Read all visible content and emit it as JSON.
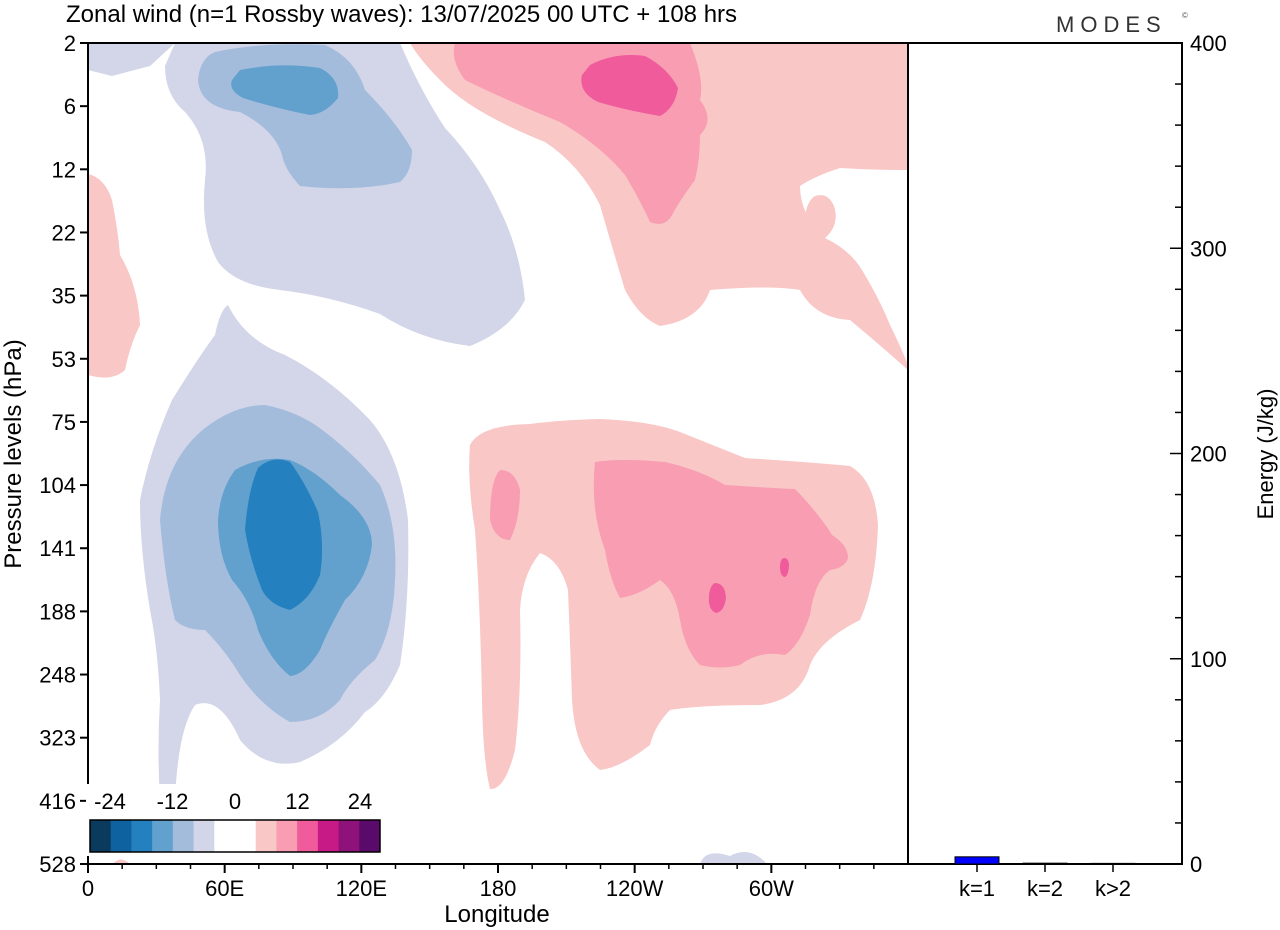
{
  "header": {
    "title": "Zonal wind (n=1 Rossby waves):  13/07/2025  00 UTC  + 108 hrs",
    "logo_text": "MODES",
    "logo_mark": "©"
  },
  "chart_data": [
    {
      "type": "heatmap",
      "title": "Zonal wind (n=1 Rossby waves):  13/07/2025  00 UTC  + 108 hrs",
      "xlabel": "Longitude",
      "ylabel": "Pressure levels (hPa)",
      "x_ticks": [
        {
          "lon": 0,
          "label": "0"
        },
        {
          "lon": 60,
          "label": "60E"
        },
        {
          "lon": 120,
          "label": "120E"
        },
        {
          "lon": 180,
          "label": "180"
        },
        {
          "lon": 240,
          "label": "120W"
        },
        {
          "lon": 300,
          "label": "60W"
        }
      ],
      "x_range": [
        0,
        360
      ],
      "y_levels": [
        "2",
        "6",
        "12",
        "22",
        "35",
        "53",
        "75",
        "104",
        "141",
        "188",
        "248",
        "323",
        "416",
        "528"
      ],
      "y_scale": "level index (top = 2 hPa, bottom = 528 hPa)",
      "colorbar": {
        "labels": [
          "-24",
          "-12",
          "0",
          "12",
          "24"
        ],
        "colors": [
          "#0a3a5c",
          "#0e62a0",
          "#2580c0",
          "#62a1cd",
          "#a3bcdc",
          "#d3d5e8",
          "#ffffff",
          "#ffffff",
          "#f9c7c6",
          "#f89db2",
          "#f05b9c",
          "#c81a86",
          "#8e1279",
          "#5a0a6b"
        ]
      },
      "fill_levels": [
        {
          "name": "negative-1",
          "color": "#d3d5e8"
        },
        {
          "name": "negative-2",
          "color": "#a3bcdc"
        },
        {
          "name": "negative-3",
          "color": "#62a1cd"
        },
        {
          "name": "negative-4",
          "color": "#2580c0"
        },
        {
          "name": "positive-1",
          "color": "#f9c7c6"
        },
        {
          "name": "positive-2",
          "color": "#f89db2"
        },
        {
          "name": "positive-3",
          "color": "#f05b9c"
        }
      ]
    },
    {
      "type": "bar",
      "ylabel": "Energy (J/kg)",
      "ylim": [
        0,
        400
      ],
      "y_ticks": [
        "0",
        "100",
        "200",
        "300",
        "400"
      ],
      "categories": [
        "k=1",
        "k=2",
        "k>2"
      ],
      "values": [
        3.5,
        0.4,
        0.3
      ],
      "bar_color": "#0000ff"
    }
  ]
}
